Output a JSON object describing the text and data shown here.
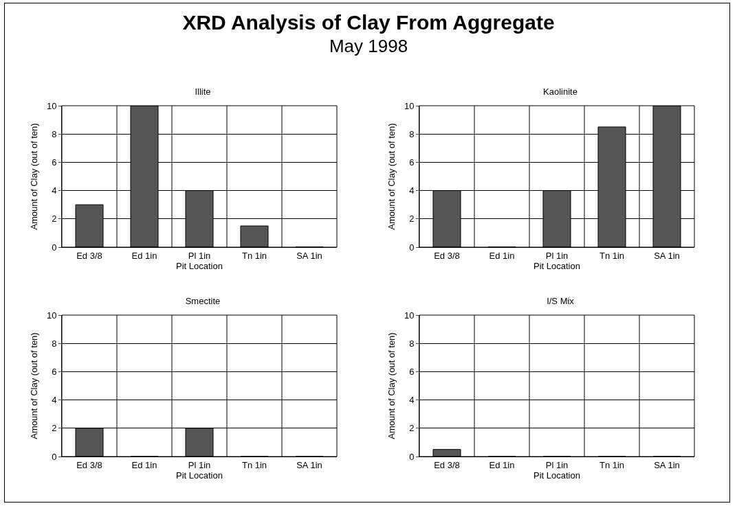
{
  "chart_data": [
    {
      "type": "other",
      "title": "XRD Analysis of Clay From Aggregate",
      "subtitle": "May 1998"
    },
    {
      "type": "bar",
      "title": "Illite",
      "xlabel": "Pit Location",
      "ylabel": "Amount of Clay (out of ten)",
      "categories": [
        "Ed 3/8",
        "Ed 1in",
        "Pl 1in",
        "Tn 1in",
        "SA 1in"
      ],
      "values": [
        3,
        10,
        4,
        1.5,
        0
      ],
      "color": "#555555",
      "ylim": [
        0,
        10
      ],
      "yticks": [
        0,
        2,
        4,
        6,
        8,
        10
      ],
      "grid": "y"
    },
    {
      "type": "bar",
      "title": "Kaolinite",
      "xlabel": "Pit Location",
      "ylabel": "Amount of Clay (out of ten)",
      "categories": [
        "Ed 3/8",
        "Ed 1in",
        "Pl 1in",
        "Tn 1in",
        "SA 1in"
      ],
      "values": [
        4,
        0,
        4,
        8.5,
        10
      ],
      "color": "#555555",
      "ylim": [
        0,
        10
      ],
      "yticks": [
        0,
        2,
        4,
        6,
        8,
        10
      ],
      "grid": "y"
    },
    {
      "type": "bar",
      "title": "Smectite",
      "xlabel": "Pit Location",
      "ylabel": "Amount of Clay (out of ten)",
      "categories": [
        "Ed 3/8",
        "Ed 1in",
        "Pl 1in",
        "Tn 1in",
        "SA 1in"
      ],
      "values": [
        2,
        0,
        2,
        0,
        0
      ],
      "color": "#555555",
      "ylim": [
        0,
        10
      ],
      "yticks": [
        0,
        2,
        4,
        6,
        8,
        10
      ],
      "grid": "y"
    },
    {
      "type": "bar",
      "title": "I/S Mix",
      "xlabel": "Pit Location",
      "ylabel": "Amount of Clay (out of ten)",
      "categories": [
        "Ed 3/8",
        "Ed 1in",
        "Pl 1in",
        "Tn 1in",
        "SA 1in"
      ],
      "values": [
        0.5,
        0,
        0,
        0,
        0
      ],
      "color": "#555555",
      "ylim": [
        0,
        10
      ],
      "yticks": [
        0,
        2,
        4,
        6,
        8,
        10
      ],
      "grid": "y"
    }
  ]
}
